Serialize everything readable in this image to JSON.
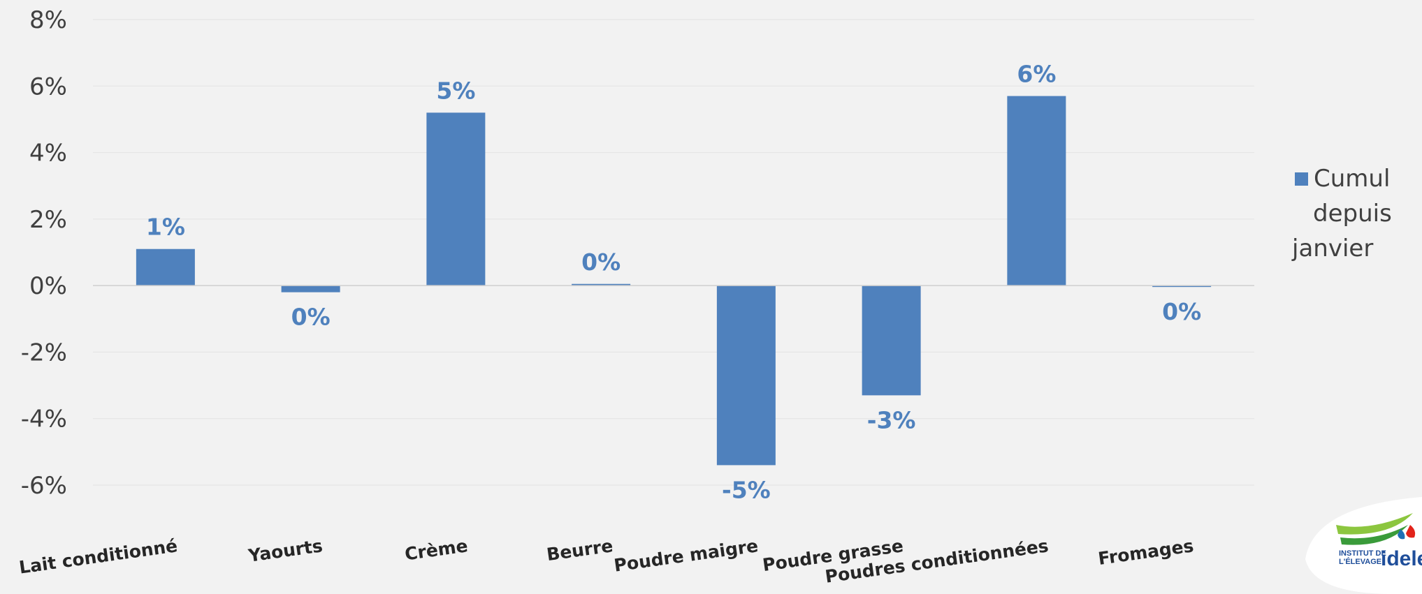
{
  "chart_data": {
    "type": "bar",
    "categories": [
      "Lait conditionné",
      "Yaourts",
      "Crème",
      "Beurre",
      "Poudre maigre",
      "Poudre grasse",
      "Poudres conditionnées",
      "Fromages"
    ],
    "series": [
      {
        "name": "Cumul depuis janvier",
        "values": [
          1.1,
          -0.2,
          5.2,
          0.05,
          -5.4,
          -3.3,
          5.7,
          -0.03
        ],
        "data_labels": [
          "1%",
          "0%",
          "5%",
          "0%",
          "-5%",
          "-3%",
          "6%",
          "0%"
        ]
      }
    ],
    "y_ticks": [
      "8%",
      "6%",
      "4%",
      "2%",
      "0%",
      "-2%",
      "-4%",
      "-6%"
    ],
    "ylim": [
      -6,
      8
    ],
    "grid": true,
    "legend_position": "right",
    "legend_lines": [
      "Cumul",
      "depuis",
      "janvier"
    ],
    "colors": {
      "bar": "#4f81bd",
      "label": "#4f81bd",
      "background": "#f2f2f2"
    }
  },
  "logo": {
    "text_line1": "INSTITUT DE",
    "text_line2": "L'ÉLEVAGE",
    "brand": "idele"
  }
}
